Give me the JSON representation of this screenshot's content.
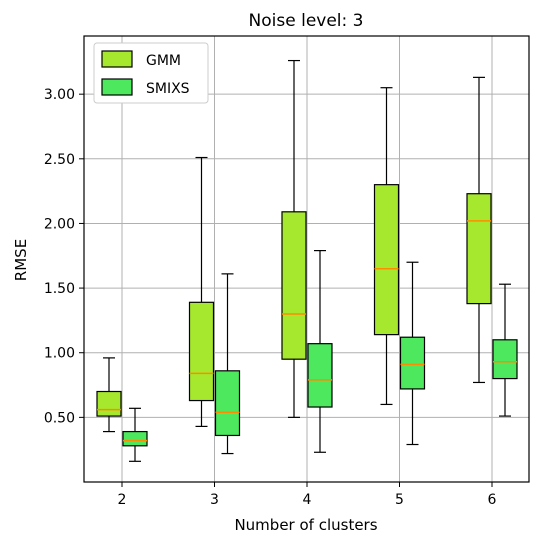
{
  "chart_data": {
    "type": "boxplot",
    "title": "Noise level: 3",
    "xlabel": "Number of clusters",
    "ylabel": "RMSE",
    "categories": [
      "2",
      "3",
      "4",
      "5",
      "6"
    ],
    "yticks": [
      "0.50",
      "1.00",
      "1.50",
      "2.00",
      "2.50",
      "3.00"
    ],
    "ylim": [
      0.0,
      3.45
    ],
    "grid": true,
    "legend_position": "upper-left",
    "series": [
      {
        "name": "GMM",
        "color": "#a6e82e",
        "boxes": [
          {
            "whislo": 0.39,
            "q1": 0.51,
            "med": 0.56,
            "q3": 0.7,
            "whishi": 0.96
          },
          {
            "whislo": 0.43,
            "q1": 0.63,
            "med": 0.84,
            "q3": 1.39,
            "whishi": 2.51
          },
          {
            "whislo": 0.5,
            "q1": 0.95,
            "med": 1.3,
            "q3": 2.09,
            "whishi": 3.26
          },
          {
            "whislo": 0.6,
            "q1": 1.14,
            "med": 1.65,
            "q3": 2.3,
            "whishi": 3.05
          },
          {
            "whislo": 0.77,
            "q1": 1.38,
            "med": 2.02,
            "q3": 2.23,
            "whishi": 3.13
          }
        ]
      },
      {
        "name": "SMIXS",
        "color": "#4de85e",
        "boxes": [
          {
            "whislo": 0.16,
            "q1": 0.28,
            "med": 0.32,
            "q3": 0.39,
            "whishi": 0.57
          },
          {
            "whislo": 0.22,
            "q1": 0.36,
            "med": 0.54,
            "q3": 0.86,
            "whishi": 1.61
          },
          {
            "whislo": 0.23,
            "q1": 0.58,
            "med": 0.79,
            "q3": 1.07,
            "whishi": 1.79
          },
          {
            "whislo": 0.29,
            "q1": 0.72,
            "med": 0.91,
            "q3": 1.12,
            "whishi": 1.7
          },
          {
            "whislo": 0.51,
            "q1": 0.8,
            "med": 0.93,
            "q3": 1.1,
            "whishi": 1.53
          }
        ]
      }
    ],
    "median_color": "#ff8c00"
  }
}
